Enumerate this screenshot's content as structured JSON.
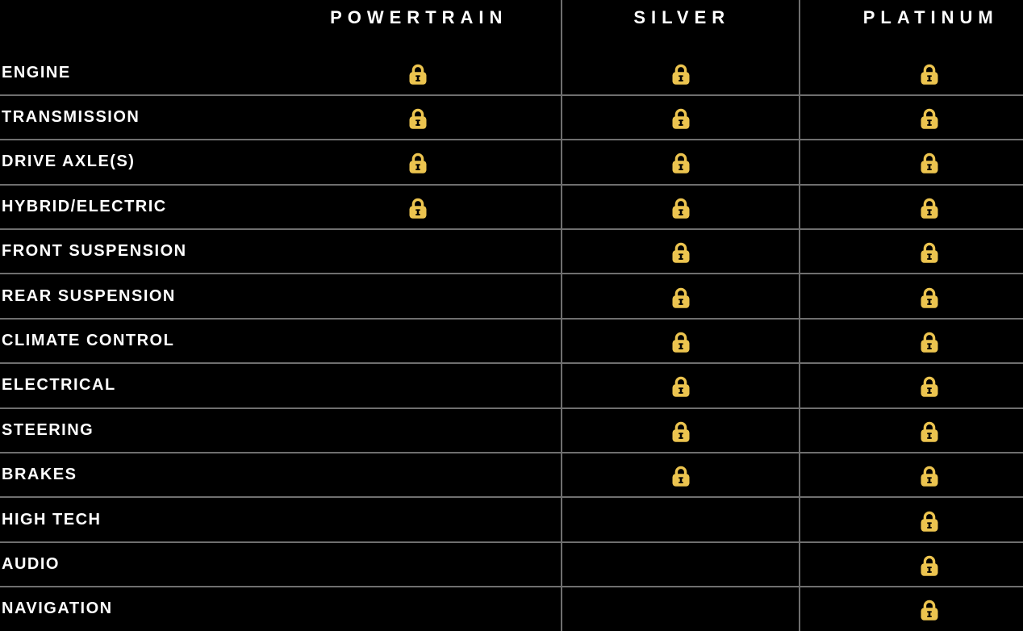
{
  "table": {
    "title": "coverage-comparison",
    "colors": {
      "background": "#000000",
      "text": "#ffffff",
      "grid_line": "#6f6f6f",
      "lock_gold": "#ecc44f"
    },
    "icons": {
      "covered_indicator": "lock-icon"
    },
    "columns": [
      {
        "key": "powertrain",
        "label": "POWERTRAIN"
      },
      {
        "key": "silver",
        "label": "SILVER"
      },
      {
        "key": "platinum",
        "label": "PLATINUM"
      }
    ],
    "rows": [
      {
        "label": "ENGINE",
        "powertrain": true,
        "silver": true,
        "platinum": true
      },
      {
        "label": "TRANSMISSION",
        "powertrain": true,
        "silver": true,
        "platinum": true
      },
      {
        "label": "DRIVE AXLE(S)",
        "powertrain": true,
        "silver": true,
        "platinum": true
      },
      {
        "label": "HYBRID/ELECTRIC",
        "powertrain": true,
        "silver": true,
        "platinum": true
      },
      {
        "label": "FRONT SUSPENSION",
        "powertrain": false,
        "silver": true,
        "platinum": true
      },
      {
        "label": "REAR SUSPENSION",
        "powertrain": false,
        "silver": true,
        "platinum": true
      },
      {
        "label": "CLIMATE CONTROL",
        "powertrain": false,
        "silver": true,
        "platinum": true
      },
      {
        "label": "ELECTRICAL",
        "powertrain": false,
        "silver": true,
        "platinum": true
      },
      {
        "label": "STEERING",
        "powertrain": false,
        "silver": true,
        "platinum": true
      },
      {
        "label": "BRAKES",
        "powertrain": false,
        "silver": true,
        "platinum": true
      },
      {
        "label": "HIGH TECH",
        "powertrain": false,
        "silver": false,
        "platinum": true
      },
      {
        "label": "AUDIO",
        "powertrain": false,
        "silver": false,
        "platinum": true
      },
      {
        "label": "NAVIGATION",
        "powertrain": false,
        "silver": false,
        "platinum": true
      }
    ]
  }
}
